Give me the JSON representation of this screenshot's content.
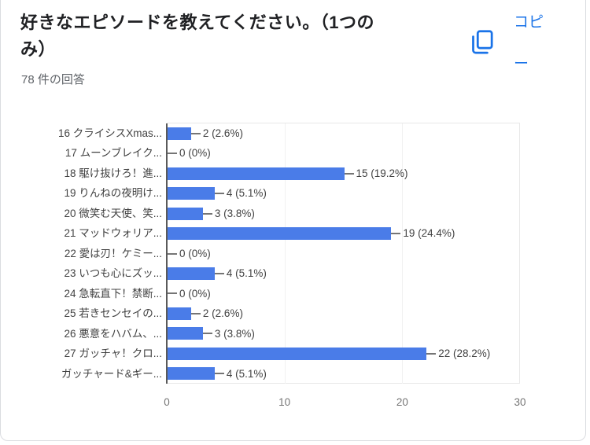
{
  "card": {
    "title_line1": "好きなエピソードを教えてください。（1つの",
    "title_line2": "み）",
    "response_count": "78 件の回答",
    "copy_button": {
      "label": "コピー",
      "icon": "copy-icon",
      "color": "#1a73e8"
    }
  },
  "chart_data": {
    "type": "bar",
    "orientation": "horizontal",
    "title": "好きなエピソードを教えてください。（1つのみ）",
    "categories": [
      "16 クライシスXmas...",
      "17 ムーンブレイク...",
      "18 駆け抜けろ！進...",
      "19 りんねの夜明け...",
      "20 微笑む天使、笑...",
      "21 マッドウォリア...",
      "22 愛は刃！ケミー...",
      "23 いつも心にズッ...",
      "24 急転直下！禁断...",
      "25 若きセンセイの...",
      "26 悪意をハバム、...",
      "27 ガッチャ！クロ...",
      "ガッチャード&ギー..."
    ],
    "values": [
      2,
      0,
      15,
      4,
      3,
      19,
      0,
      4,
      0,
      2,
      3,
      22,
      4
    ],
    "value_labels": [
      "2 (2.6%)",
      "0 (0%)",
      "15 (19.2%)",
      "4 (5.1%)",
      "3 (3.8%)",
      "19 (24.4%)",
      "0 (0%)",
      "4 (5.1%)",
      "0 (0%)",
      "2 (2.6%)",
      "3 (3.8%)",
      "22 (28.2%)",
      "4 (5.1%)"
    ],
    "total_responses": 78,
    "xlim": [
      0,
      30
    ],
    "x_ticks": [
      0,
      10,
      20,
      30
    ],
    "grid": true,
    "bar_color": "#4a7ce8",
    "legend_position": "none"
  }
}
